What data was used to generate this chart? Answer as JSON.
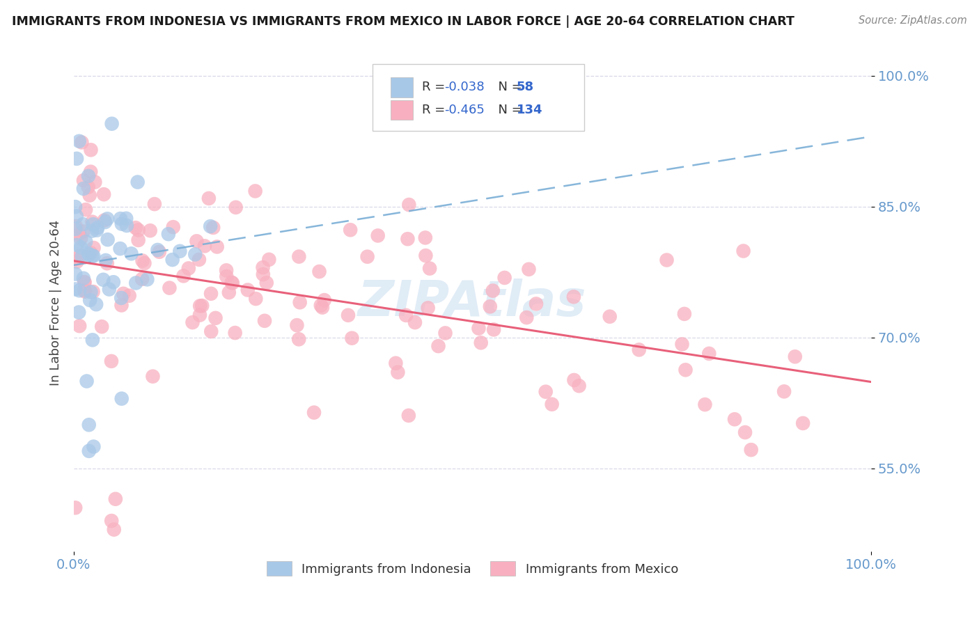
{
  "title": "IMMIGRANTS FROM INDONESIA VS IMMIGRANTS FROM MEXICO IN LABOR FORCE | AGE 20-64 CORRELATION CHART",
  "source": "Source: ZipAtlas.com",
  "ylabel": "In Labor Force | Age 20-64",
  "xlim": [
    0.0,
    1.0
  ],
  "ylim": [
    0.455,
    1.025
  ],
  "yticks": [
    0.55,
    0.7,
    0.85,
    1.0
  ],
  "ytick_labels": [
    "55.0%",
    "70.0%",
    "85.0%",
    "100.0%"
  ],
  "xticks": [
    0.0,
    1.0
  ],
  "xtick_labels": [
    "0.0%",
    "100.0%"
  ],
  "legend_r_indonesia": "-0.038",
  "legend_n_indonesia": "58",
  "legend_r_mexico": "-0.465",
  "legend_n_mexico": "134",
  "color_indonesia": "#a8c8e8",
  "color_mexico": "#f8b0c0",
  "line_color_indonesia": "#7aaed6",
  "line_color_mexico": "#e8607a",
  "background_color": "#ffffff",
  "grid_color": "#d8d8e8",
  "tick_color": "#6699cc",
  "watermark_color": "#c8ddf0",
  "legend_text_color": "#333333",
  "legend_r_color": "#3366cc",
  "legend_n_color": "#3366cc"
}
